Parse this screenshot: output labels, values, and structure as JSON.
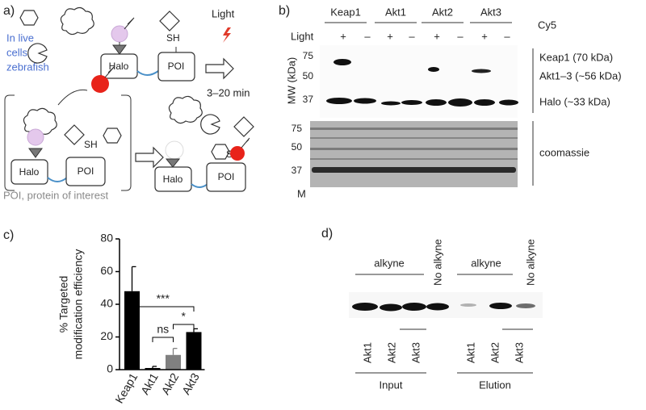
{
  "panel_a": {
    "label": "a)",
    "live_text": [
      "In live",
      "cells or",
      "zebrafish"
    ],
    "halo": [
      "Halo",
      "Halo",
      "Halo"
    ],
    "poi": [
      "POI",
      "POI",
      "POI"
    ],
    "sh": [
      "SH",
      "SH",
      "SH"
    ],
    "light": "Light",
    "time": "3–20 min",
    "footnote": "POI, protein of interest"
  },
  "panel_b": {
    "label": "b)",
    "lanes": [
      "Keap1",
      "Akt1",
      "Akt2",
      "Akt3"
    ],
    "light": "Light",
    "signs": [
      "+",
      "–",
      "+",
      "–",
      "+",
      "–",
      "+",
      "–"
    ],
    "cy5": "Cy5",
    "mw_label": "MW (kDa)",
    "markers_top": [
      "75",
      "50",
      "37"
    ],
    "markers_bottom": [
      "75",
      "50",
      "37"
    ],
    "marker_lane": "M",
    "band_labels": [
      "Keap1 (70 kDa)",
      "Akt1–3 (~56 kDa)",
      "Halo (~33 kDa)"
    ],
    "stain": "coomassie"
  },
  "chart_data": {
    "type": "bar",
    "panel_label": "c)",
    "ylabel": [
      "% Targeted",
      "modification efficiency"
    ],
    "categories": [
      "Keap1",
      "Akt1",
      "Akt2",
      "Akt3"
    ],
    "values": [
      48,
      1,
      9,
      23
    ],
    "errors": [
      15,
      1,
      4,
      2
    ],
    "colors": [
      "#000000",
      "#000000",
      "#808080",
      "#000000"
    ],
    "ylim": [
      0,
      80
    ],
    "yticks": [
      0,
      20,
      40,
      60,
      80
    ],
    "annotations": [
      "***",
      "ns",
      "*"
    ]
  },
  "panel_d": {
    "label": "d)",
    "groups": [
      "alkyne",
      "No alkyne",
      "alkyne",
      "No alkyne"
    ],
    "lanes": [
      "Akt1",
      "Akt2",
      "Akt3",
      "Akt1",
      "Akt2",
      "Akt3"
    ],
    "sections": [
      "Input",
      "Elution"
    ]
  }
}
